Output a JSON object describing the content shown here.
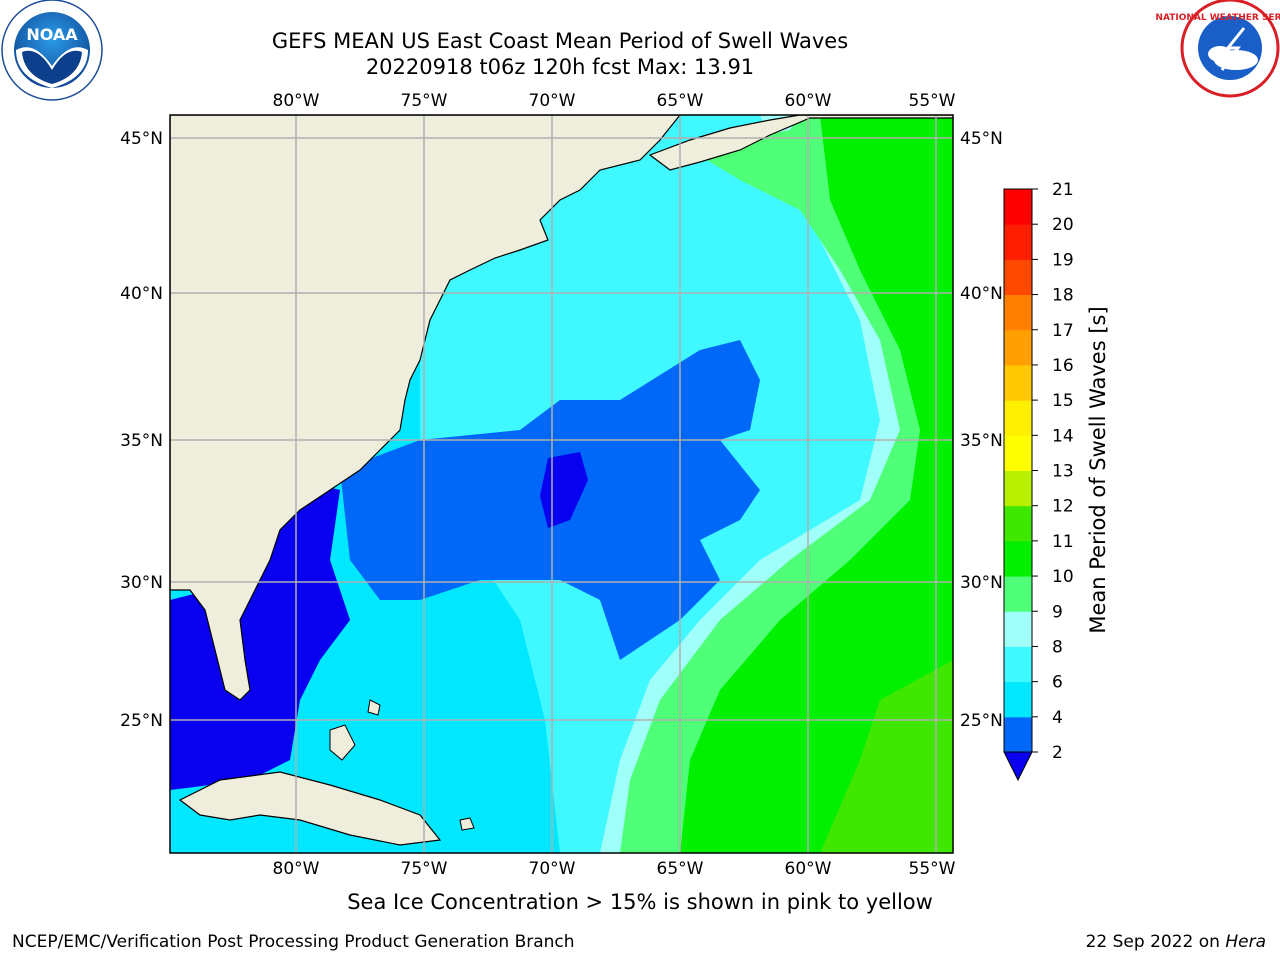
{
  "title_line1": "GEFS MEAN US East Coast Mean Period of Swell Waves",
  "title_line2": "20220918 t06z 120h fcst   Max: 13.91",
  "logos": {
    "left": {
      "text": "NOAA",
      "icon": "noaa-logo"
    },
    "right": {
      "text": "NATIONAL WEATHER SERVICE",
      "icon": "nws-logo"
    }
  },
  "map": {
    "lon_ticks": [
      "80°W",
      "75°W",
      "70°W",
      "65°W",
      "60°W",
      "55°W"
    ],
    "lat_ticks": [
      "45°N",
      "40°N",
      "35°N",
      "30°N",
      "25°N"
    ],
    "colors": {
      "land": "#efeddc",
      "grid": "#b0b0b0",
      "coast": "#000000"
    }
  },
  "colorbar": {
    "label": "Mean Period of Swell Waves [s]",
    "ticks": [
      "2",
      "4",
      "6",
      "8",
      "9",
      "10",
      "11",
      "12",
      "13",
      "14",
      "15",
      "16",
      "17",
      "18",
      "19",
      "20",
      "21"
    ],
    "colors": [
      "#0a00f0",
      "#0068f8",
      "#00e8ff",
      "#40f8ff",
      "#a0fff8",
      "#50ff78",
      "#00f000",
      "#40e800",
      "#b8f000",
      "#ffff00",
      "#fff000",
      "#ffc800",
      "#ffa000",
      "#ff8000",
      "#ff4800",
      "#ff1e00",
      "#ff0000"
    ]
  },
  "note": "Sea Ice Concentration > 15% is shown in pink to yellow",
  "footer_left": "NCEP/EMC/Verification Post Processing Product Generation Branch",
  "footer_date": "22 Sep 2022 on",
  "footer_host": "Hera"
}
